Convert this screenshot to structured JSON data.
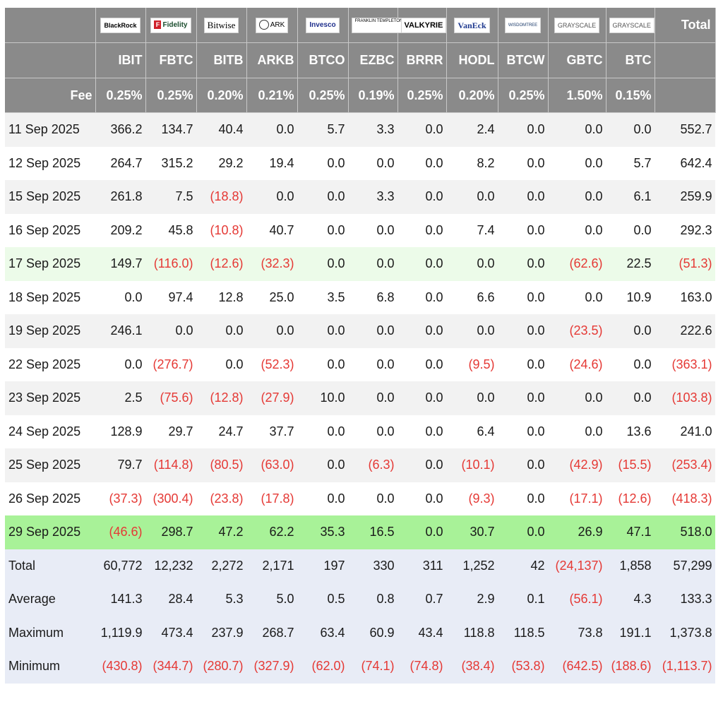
{
  "header": {
    "logos": [
      "BlackRock",
      "Fidelity",
      "Bitwise",
      "ARK",
      "Invesco",
      "FRANKLIN TEMPLETON",
      "VALKYRIE",
      "VanEck",
      "WISDOMTREE",
      "GRAYSCALE",
      "GRAYSCALE"
    ],
    "tickers": [
      "IBIT",
      "FBTC",
      "BITB",
      "ARKB",
      "BTCO",
      "EZBC",
      "BRRR",
      "HODL",
      "BTCW",
      "GBTC",
      "BTC"
    ],
    "total_label": "Total",
    "fee_label": "Fee",
    "fees": [
      "0.25%",
      "0.25%",
      "0.20%",
      "0.21%",
      "0.25%",
      "0.19%",
      "0.25%",
      "0.20%",
      "0.25%",
      "1.50%",
      "0.15%"
    ]
  },
  "rows": [
    {
      "date": "11 Sep 2025",
      "values": [
        "366.2",
        "134.7",
        "40.4",
        "0.0",
        "5.7",
        "3.3",
        "0.0",
        "2.4",
        "0.0",
        "0.0",
        "0.0"
      ],
      "total": "552.7"
    },
    {
      "date": "12 Sep 2025",
      "values": [
        "264.7",
        "315.2",
        "29.2",
        "19.4",
        "0.0",
        "0.0",
        "0.0",
        "8.2",
        "0.0",
        "0.0",
        "5.7"
      ],
      "total": "642.4"
    },
    {
      "date": "15 Sep 2025",
      "values": [
        "261.8",
        "7.5",
        "(18.8)",
        "0.0",
        "0.0",
        "3.3",
        "0.0",
        "0.0",
        "0.0",
        "0.0",
        "6.1"
      ],
      "total": "259.9"
    },
    {
      "date": "16 Sep 2025",
      "values": [
        "209.2",
        "45.8",
        "(10.8)",
        "40.7",
        "0.0",
        "0.0",
        "0.0",
        "7.4",
        "0.0",
        "0.0",
        "0.0"
      ],
      "total": "292.3"
    },
    {
      "date": "17 Sep 2025",
      "values": [
        "149.7",
        "(116.0)",
        "(12.6)",
        "(32.3)",
        "0.0",
        "0.0",
        "0.0",
        "0.0",
        "0.0",
        "(62.6)",
        "22.5"
      ],
      "total": "(51.3)"
    },
    {
      "date": "18 Sep 2025",
      "values": [
        "0.0",
        "97.4",
        "12.8",
        "25.0",
        "3.5",
        "6.8",
        "0.0",
        "6.6",
        "0.0",
        "0.0",
        "10.9"
      ],
      "total": "163.0"
    },
    {
      "date": "19 Sep 2025",
      "values": [
        "246.1",
        "0.0",
        "0.0",
        "0.0",
        "0.0",
        "0.0",
        "0.0",
        "0.0",
        "0.0",
        "(23.5)",
        "0.0"
      ],
      "total": "222.6"
    },
    {
      "date": "22 Sep 2025",
      "values": [
        "0.0",
        "(276.7)",
        "0.0",
        "(52.3)",
        "0.0",
        "0.0",
        "0.0",
        "(9.5)",
        "0.0",
        "(24.6)",
        "0.0"
      ],
      "total": "(363.1)"
    },
    {
      "date": "23 Sep 2025",
      "values": [
        "2.5",
        "(75.6)",
        "(12.8)",
        "(27.9)",
        "10.0",
        "0.0",
        "0.0",
        "0.0",
        "0.0",
        "0.0",
        "0.0"
      ],
      "total": "(103.8)"
    },
    {
      "date": "24 Sep 2025",
      "values": [
        "128.9",
        "29.7",
        "24.7",
        "37.7",
        "0.0",
        "0.0",
        "0.0",
        "6.4",
        "0.0",
        "0.0",
        "13.6"
      ],
      "total": "241.0"
    },
    {
      "date": "25 Sep 2025",
      "values": [
        "79.7",
        "(114.8)",
        "(80.5)",
        "(63.0)",
        "0.0",
        "(6.3)",
        "0.0",
        "(10.1)",
        "0.0",
        "(42.9)",
        "(15.5)"
      ],
      "total": "(253.4)"
    },
    {
      "date": "26 Sep 2025",
      "values": [
        "(37.3)",
        "(300.4)",
        "(23.8)",
        "(17.8)",
        "0.0",
        "0.0",
        "0.0",
        "(9.3)",
        "0.0",
        "(17.1)",
        "(12.6)"
      ],
      "total": "(418.3)"
    },
    {
      "date": "29 Sep 2025",
      "values": [
        "(46.6)",
        "298.7",
        "47.2",
        "62.2",
        "35.3",
        "16.5",
        "0.0",
        "30.7",
        "0.0",
        "26.9",
        "47.1"
      ],
      "total": "518.0"
    }
  ],
  "summary": [
    {
      "label": "Total",
      "values": [
        "60,772",
        "12,232",
        "2,272",
        "2,171",
        "197",
        "330",
        "311",
        "1,252",
        "42",
        "(24,137)",
        "1,858"
      ],
      "total": "57,299"
    },
    {
      "label": "Average",
      "values": [
        "141.3",
        "28.4",
        "5.3",
        "5.0",
        "0.5",
        "0.8",
        "0.7",
        "2.9",
        "0.1",
        "(56.1)",
        "4.3"
      ],
      "total": "133.3"
    },
    {
      "label": "Maximum",
      "values": [
        "1,119.9",
        "473.4",
        "237.9",
        "268.7",
        "63.4",
        "60.9",
        "43.4",
        "118.8",
        "118.5",
        "73.8",
        "191.1"
      ],
      "total": "1,373.8"
    },
    {
      "label": "Minimum",
      "values": [
        "(430.8)",
        "(344.7)",
        "(280.7)",
        "(327.9)",
        "(62.0)",
        "(74.1)",
        "(74.8)",
        "(38.4)",
        "(53.8)",
        "(642.5)",
        "(188.6)"
      ],
      "total": "(1,113.7)"
    }
  ],
  "colors": {
    "header_bg": "#8a8a8a",
    "negative": "#e53935",
    "row_alt": "#f2f2f2",
    "highlight_light": "#ecfbe9",
    "highlight_strong": "#a8f298",
    "summary_bg": "#e8ecf6"
  }
}
